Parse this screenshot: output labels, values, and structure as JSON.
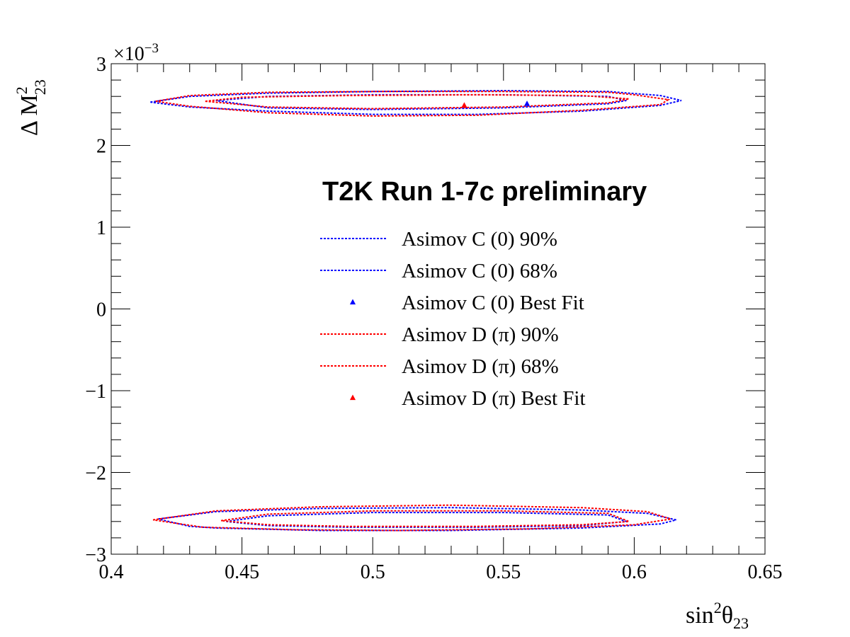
{
  "chart_data": {
    "type": "line",
    "title": "T2K Run 1-7c preliminary",
    "xlabel": {
      "base": "sin",
      "sup": "2",
      "symbol": "θ",
      "sub": "23"
    },
    "ylabel": {
      "prefix": "Δ M",
      "sup": "2",
      "sub": "23"
    },
    "y_multiplier": {
      "base": "×10",
      "exp": "−3"
    },
    "xlim": [
      0.4,
      0.65
    ],
    "ylim": [
      -3,
      3
    ],
    "x_ticks": [
      {
        "v": 0.4,
        "label": "0.4"
      },
      {
        "v": 0.45,
        "label": "0.45"
      },
      {
        "v": 0.5,
        "label": "0.5"
      },
      {
        "v": 0.55,
        "label": "0.55"
      },
      {
        "v": 0.6,
        "label": "0.6"
      },
      {
        "v": 0.65,
        "label": "0.65"
      }
    ],
    "y_ticks": [
      {
        "v": -3,
        "label": "−3"
      },
      {
        "v": -2,
        "label": "−2"
      },
      {
        "v": -1,
        "label": "−1"
      },
      {
        "v": 0,
        "label": "0"
      },
      {
        "v": 1,
        "label": "1"
      },
      {
        "v": 2,
        "label": "2"
      },
      {
        "v": 3,
        "label": "3"
      }
    ],
    "series": [
      {
        "name": "Asimov C (0) 90%",
        "color": "#0000ff",
        "style": "dotted",
        "contours": [
          [
            [
              0.415,
              2.53
            ],
            [
              0.43,
              2.6
            ],
            [
              0.46,
              2.64
            ],
            [
              0.5,
              2.66
            ],
            [
              0.55,
              2.67
            ],
            [
              0.59,
              2.66
            ],
            [
              0.61,
              2.61
            ],
            [
              0.618,
              2.55
            ],
            [
              0.61,
              2.49
            ],
            [
              0.58,
              2.42
            ],
            [
              0.54,
              2.38
            ],
            [
              0.5,
              2.38
            ],
            [
              0.46,
              2.42
            ],
            [
              0.43,
              2.47
            ],
            [
              0.415,
              2.53
            ]
          ],
          [
            [
              0.418,
              -2.57
            ],
            [
              0.44,
              -2.48
            ],
            [
              0.48,
              -2.44
            ],
            [
              0.53,
              -2.43
            ],
            [
              0.58,
              -2.46
            ],
            [
              0.605,
              -2.5
            ],
            [
              0.616,
              -2.58
            ],
            [
              0.61,
              -2.63
            ],
            [
              0.58,
              -2.68
            ],
            [
              0.53,
              -2.71
            ],
            [
              0.48,
              -2.71
            ],
            [
              0.44,
              -2.68
            ],
            [
              0.43,
              -2.66
            ],
            [
              0.418,
              -2.57
            ]
          ]
        ]
      },
      {
        "name": "Asimov C (0) 68%",
        "color": "#0000ff",
        "style": "dotted",
        "contours": [
          [
            [
              0.44,
              2.55
            ],
            [
              0.46,
              2.6
            ],
            [
              0.5,
              2.62
            ],
            [
              0.55,
              2.62
            ],
            [
              0.59,
              2.6
            ],
            [
              0.597,
              2.55
            ],
            [
              0.59,
              2.51
            ],
            [
              0.55,
              2.46
            ],
            [
              0.5,
              2.44
            ],
            [
              0.46,
              2.46
            ],
            [
              0.44,
              2.55
            ]
          ],
          [
            [
              0.444,
              -2.6
            ],
            [
              0.46,
              -2.53
            ],
            [
              0.5,
              -2.49
            ],
            [
              0.55,
              -2.49
            ],
            [
              0.59,
              -2.52
            ],
            [
              0.597,
              -2.6
            ],
            [
              0.58,
              -2.65
            ],
            [
              0.54,
              -2.67
            ],
            [
              0.49,
              -2.67
            ],
            [
              0.46,
              -2.65
            ],
            [
              0.444,
              -2.6
            ]
          ]
        ]
      },
      {
        "name": "Asimov C (0) Best Fit",
        "color": "#0000ff",
        "style": "marker",
        "points": [
          [
            0.559,
            2.51
          ]
        ]
      },
      {
        "name": "Asimov D (π) 90%",
        "color": "#ff0000",
        "style": "dotted",
        "contours": [
          [
            [
              0.417,
              2.54
            ],
            [
              0.43,
              2.61
            ],
            [
              0.46,
              2.65
            ],
            [
              0.5,
              2.66
            ],
            [
              0.55,
              2.66
            ],
            [
              0.59,
              2.65
            ],
            [
              0.6,
              2.62
            ],
            [
              0.613,
              2.56
            ],
            [
              0.61,
              2.5
            ],
            [
              0.58,
              2.43
            ],
            [
              0.54,
              2.37
            ],
            [
              0.5,
              2.36
            ],
            [
              0.46,
              2.4
            ],
            [
              0.43,
              2.48
            ],
            [
              0.417,
              2.54
            ]
          ],
          [
            [
              0.416,
              -2.58
            ],
            [
              0.44,
              -2.47
            ],
            [
              0.48,
              -2.42
            ],
            [
              0.53,
              -2.4
            ],
            [
              0.58,
              -2.43
            ],
            [
              0.605,
              -2.48
            ],
            [
              0.614,
              -2.57
            ],
            [
              0.6,
              -2.64
            ],
            [
              0.56,
              -2.69
            ],
            [
              0.51,
              -2.71
            ],
            [
              0.47,
              -2.7
            ],
            [
              0.435,
              -2.67
            ],
            [
              0.416,
              -2.58
            ]
          ]
        ]
      },
      {
        "name": "Asimov D (π) 68%",
        "color": "#ff0000",
        "style": "dotted",
        "contours": [
          [
            [
              0.436,
              2.54
            ],
            [
              0.45,
              2.59
            ],
            [
              0.49,
              2.61
            ],
            [
              0.54,
              2.62
            ],
            [
              0.58,
              2.61
            ],
            [
              0.598,
              2.57
            ],
            [
              0.59,
              2.52
            ],
            [
              0.55,
              2.47
            ],
            [
              0.5,
              2.45
            ],
            [
              0.46,
              2.47
            ],
            [
              0.436,
              2.54
            ]
          ],
          [
            [
              0.442,
              -2.59
            ],
            [
              0.46,
              -2.51
            ],
            [
              0.5,
              -2.47
            ],
            [
              0.55,
              -2.47
            ],
            [
              0.59,
              -2.5
            ],
            [
              0.598,
              -2.6
            ],
            [
              0.58,
              -2.64
            ],
            [
              0.54,
              -2.66
            ],
            [
              0.49,
              -2.66
            ],
            [
              0.46,
              -2.64
            ],
            [
              0.442,
              -2.59
            ]
          ]
        ]
      },
      {
        "name": "Asimov D (π) Best Fit",
        "color": "#ff0000",
        "style": "marker",
        "points": [
          [
            0.535,
            2.49
          ]
        ]
      }
    ],
    "legend_position": "center-right"
  }
}
